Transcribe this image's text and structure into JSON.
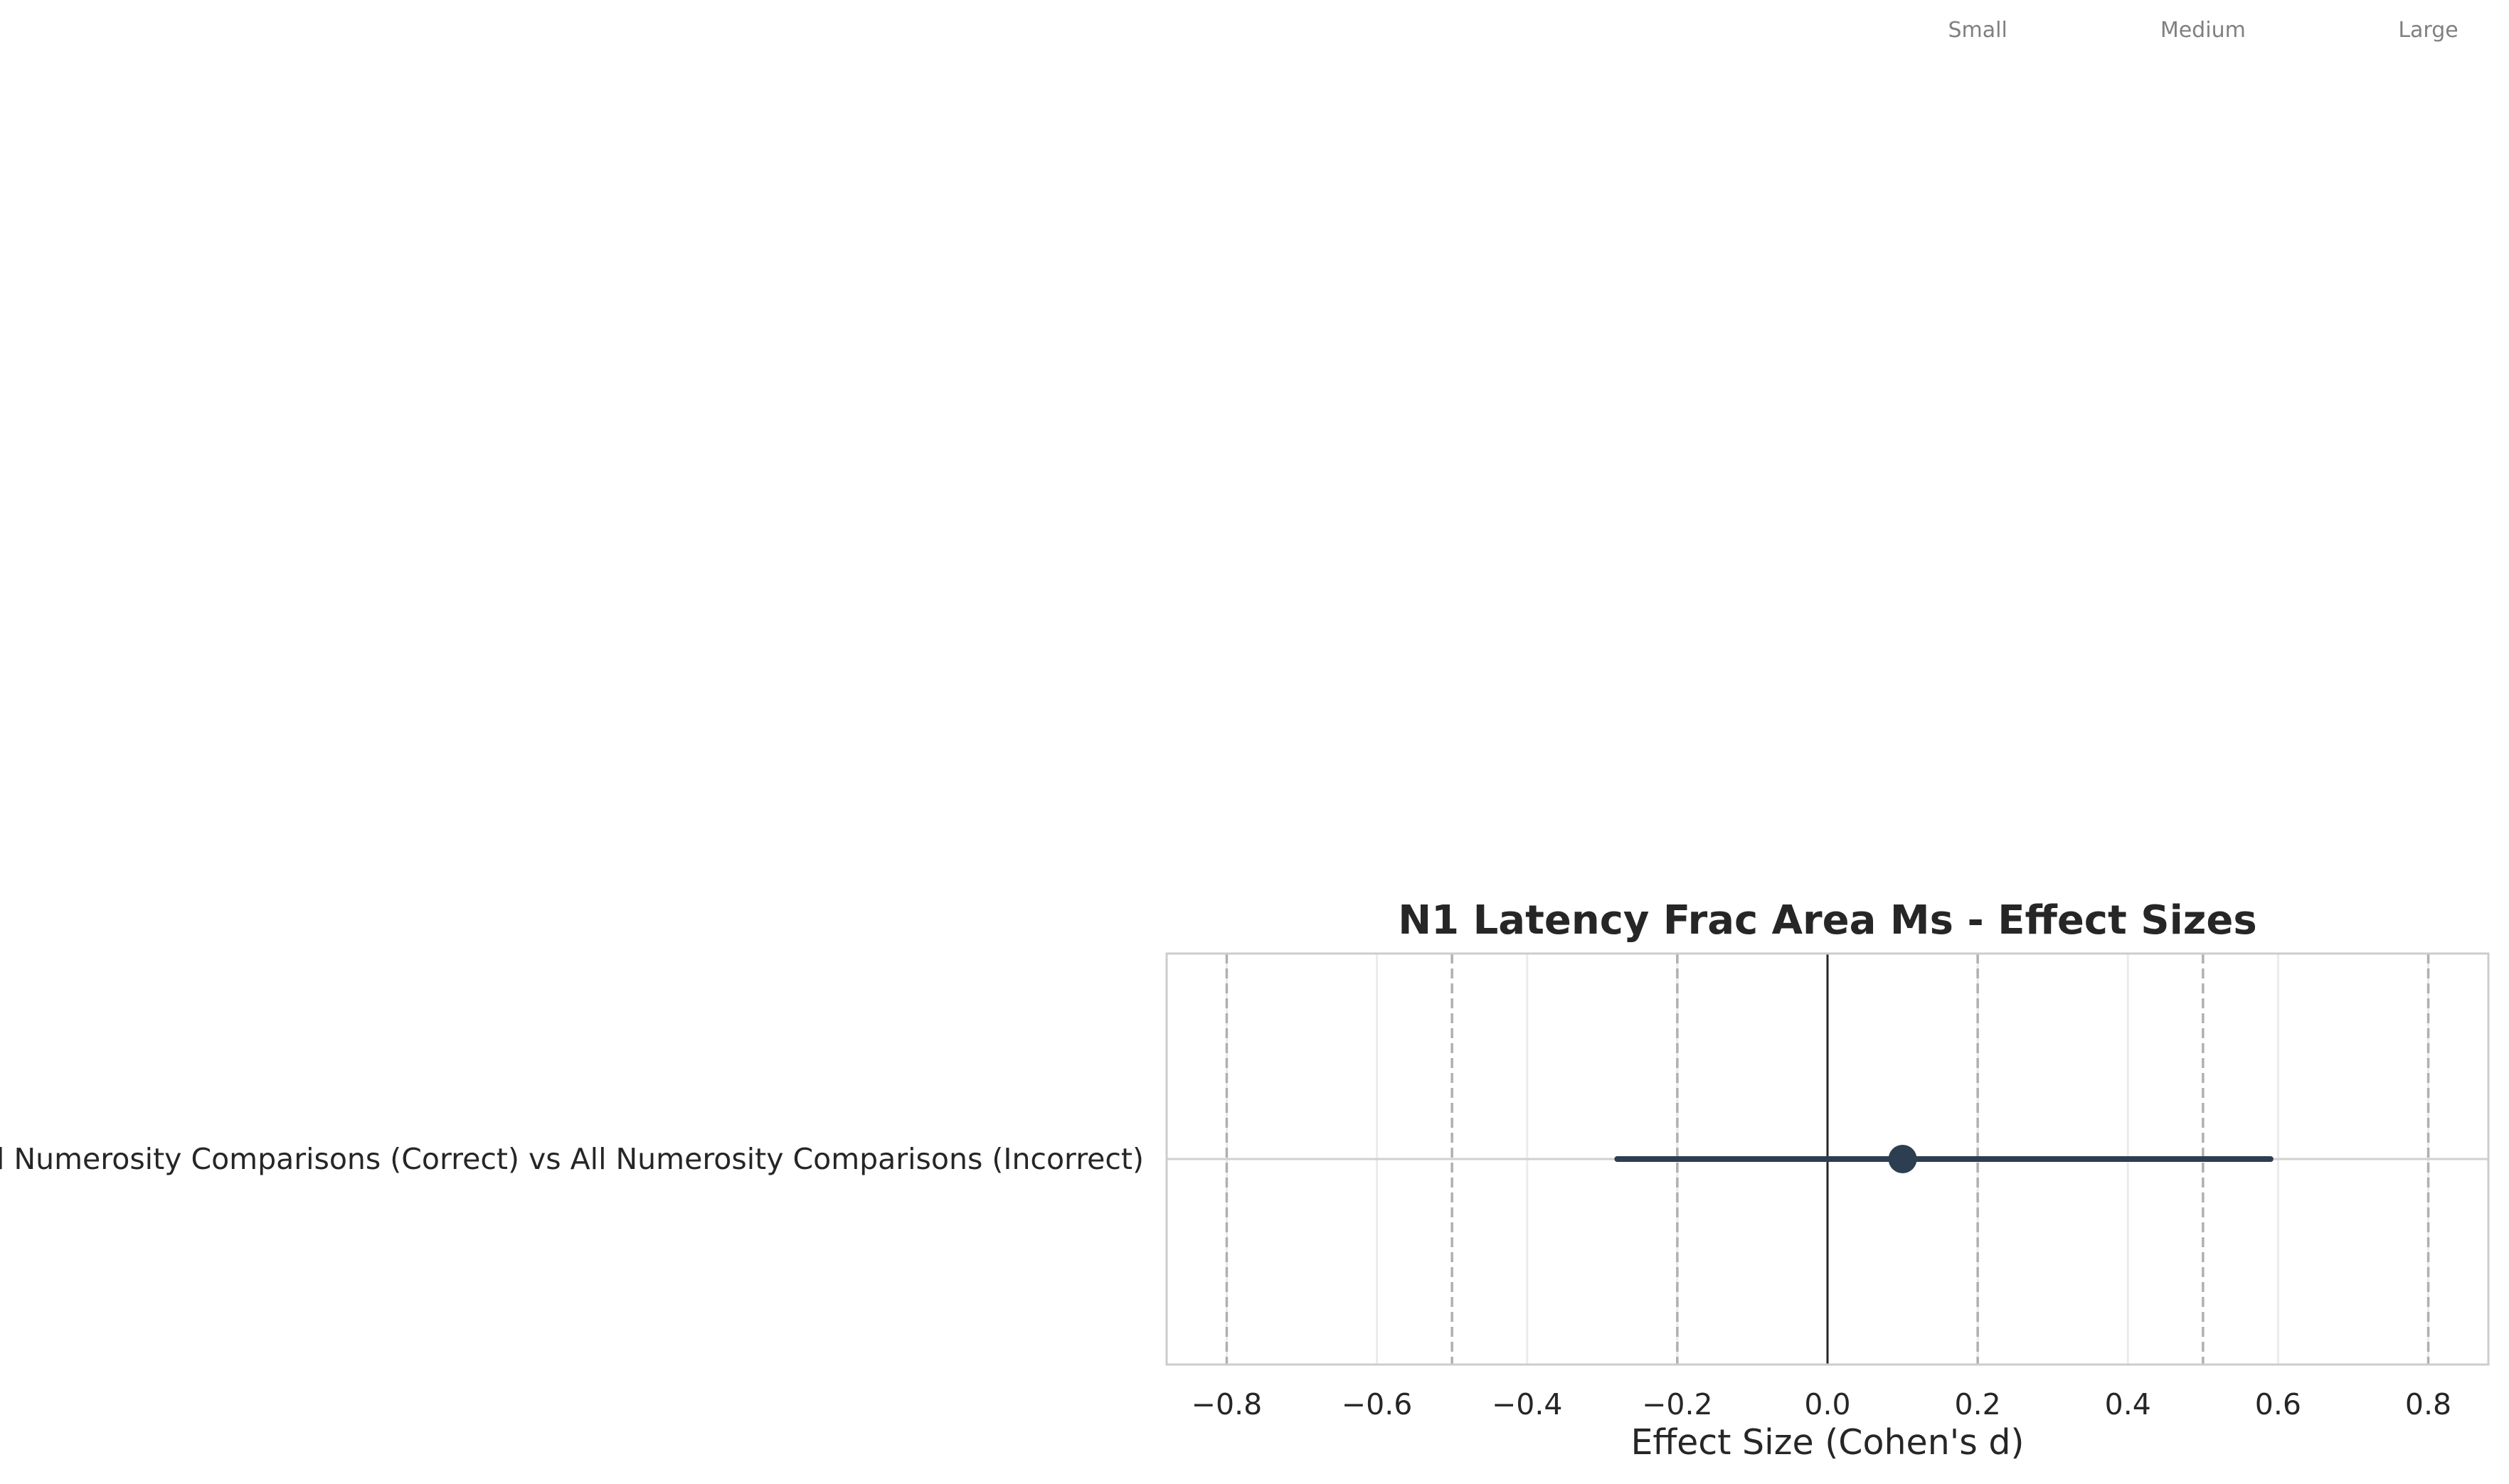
{
  "chart_data": {
    "type": "forest",
    "title": "N1 Latency Frac Area Ms - Effect Sizes",
    "xlabel": "Effect Size (Cohen's d)",
    "xlim": [
      -0.88,
      0.88
    ],
    "xticks": [
      -0.8,
      -0.6,
      -0.4,
      -0.2,
      0.0,
      0.2,
      0.4,
      0.6,
      0.8
    ],
    "xtick_labels": [
      "−0.8",
      "−0.6",
      "−0.4",
      "−0.2",
      "0.0",
      "0.2",
      "0.4",
      "0.6",
      "0.8"
    ],
    "grid": true,
    "zero_line": 0,
    "reference_lines": [
      -0.8,
      -0.5,
      -0.2,
      0.2,
      0.5,
      0.8
    ],
    "reference_labels": [
      {
        "label": "Small",
        "x": 0.2
      },
      {
        "label": "Medium",
        "x": 0.5
      },
      {
        "label": "Large",
        "x": 0.8
      }
    ],
    "comparisons": [
      {
        "label": "All Numerosity Comparisons (Correct) vs All Numerosity Comparisons (Incorrect)",
        "effect": 0.1,
        "ci": [
          -0.28,
          0.59
        ]
      }
    ],
    "colors": {
      "marker": "#2c3e50",
      "zero_line": "#262626",
      "reference_line": "#b0b0b0",
      "grid": "#ebebeb",
      "frame": "#cccccc"
    }
  }
}
